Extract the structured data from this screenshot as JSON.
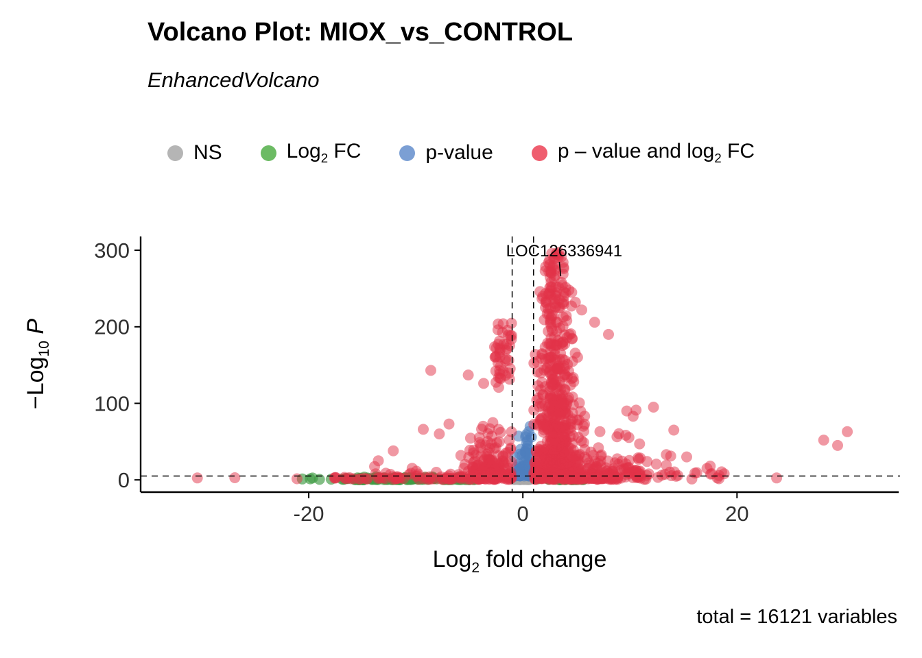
{
  "chart_data": {
    "type": "scatter",
    "title": "Volcano Plot: MIOX_vs_CONTROL",
    "subtitle": "EnhancedVolcano",
    "caption": "total = 16121 variables",
    "xlabel": {
      "pre": "Log",
      "sub": "2",
      "post": " fold change"
    },
    "ylabel": {
      "pre": "−Log",
      "sub": "10",
      "post": " P"
    },
    "x_axis": {
      "ticks": [
        -20,
        0,
        20
      ],
      "min": -35.7,
      "max": 35.1
    },
    "y_axis": {
      "ticks": [
        0,
        100,
        200,
        300
      ],
      "min": -16,
      "max": 318
    },
    "thresholds": {
      "vlines": [
        -1,
        1
      ],
      "hlines": [
        5
      ]
    },
    "annotation": {
      "label": "LOC126336941",
      "x": 3.6,
      "y": 258
    },
    "legend": [
      {
        "pre": "NS",
        "sub": "",
        "post": "",
        "color": "#b5b5b5"
      },
      {
        "pre": "Log",
        "sub": "2",
        "post": " FC",
        "color": "#6cbb64"
      },
      {
        "pre": "p-value",
        "sub": "",
        "post": "",
        "color": "#7b9fd4"
      },
      {
        "pre": "p – value and log",
        "sub": "2",
        "post": " FC",
        "color": "#ef5e6f"
      }
    ],
    "seed": 42,
    "series": [
      {
        "name": "NS",
        "color": "#a9a9a9",
        "opacity": 0.7,
        "r": 8,
        "clusters": [
          {
            "n": 70,
            "x": {
              "normal": [
                -0.1,
                0.45,
                -0.98,
                0.98
              ]
            },
            "y": {
              "exp": [
                0.3,
                1.5,
                4.8
              ]
            }
          }
        ],
        "points": []
      },
      {
        "name": "Log2 FC",
        "color": "#3f9b43",
        "opacity": 0.65,
        "r": 8,
        "clusters": [
          {
            "n": 90,
            "x": {
              "uniform": [
                -16,
                -8
              ]
            },
            "y": {
              "exp": [
                0.2,
                1.2,
                4.5
              ]
            }
          },
          {
            "n": 25,
            "x": {
              "uniform": [
                -8,
                -4
              ]
            },
            "y": {
              "exp": [
                0.2,
                1.0,
                4.0
              ]
            }
          },
          {
            "n": 30,
            "x": {
              "uniform": [
                1.2,
                6
              ]
            },
            "y": {
              "exp": [
                0.2,
                1.0,
                4.0
              ]
            }
          },
          {
            "n": 8,
            "x": {
              "uniform": [
                -20,
                -16
              ]
            },
            "y": {
              "uniform": [
                0.3,
                2.5
              ]
            }
          }
        ],
        "points": [
          [
            -20.6,
            1.2
          ],
          [
            -17.9,
            0.9
          ]
        ]
      },
      {
        "name": "p-value",
        "color": "#4f7fbe",
        "opacity": 0.6,
        "r": 8,
        "clusters": [
          {
            "n": 70,
            "x": {
              "normal": [
                0.45,
                0.3,
                -0.95,
                0.98
              ]
            },
            "y": {
              "exp": [
                5,
                14,
                70
              ]
            }
          },
          {
            "n": 25,
            "x": {
              "normal": [
                -0.4,
                0.3,
                -0.98,
                -0.02
              ]
            },
            "y": {
              "exp": [
                5,
                8,
                40
              ]
            }
          }
        ],
        "points": [
          [
            0.68,
            70
          ],
          [
            0.55,
            63
          ],
          [
            0.8,
            56
          ],
          [
            0.35,
            49
          ]
        ]
      },
      {
        "name": "p-value and log2 FC",
        "color": "#e23148",
        "opacity": 0.5,
        "r": 8,
        "clusters": [
          {
            "n": 420,
            "x": {
              "normal": [
                3.1,
                1.3,
                1.02,
                8
              ]
            },
            "y": {
              "exp": [
                2,
                30,
                190
              ]
            }
          },
          {
            "n": 160,
            "x": {
              "normal": [
                2.9,
                1.0,
                1.02,
                6.5
              ]
            },
            "y": {
              "uniform": [
                60,
                180
              ]
            }
          },
          {
            "n": 70,
            "x": {
              "normal": [
                3.1,
                0.8,
                1.5,
                5.5
              ]
            },
            "y": {
              "uniform": [
                180,
                255
              ]
            }
          },
          {
            "n": 26,
            "x": {
              "normal": [
                3.0,
                0.5,
                2.0,
                4.5
              ]
            },
            "y": {
              "uniform": [
                255,
                298
              ]
            }
          },
          {
            "n": 170,
            "x": {
              "normal": [
                -2.6,
                1.4,
                -9,
                -1.02
              ]
            },
            "y": {
              "exp": [
                1,
                22,
                130
              ]
            }
          },
          {
            "n": 45,
            "x": {
              "normal": [
                -1.8,
                0.7,
                -4.5,
                -1.02
              ]
            },
            "y": {
              "uniform": [
                120,
                205
              ]
            }
          },
          {
            "n": 80,
            "x": {
              "uniform": [
                6,
                11
              ]
            },
            "y": {
              "exp": [
                1,
                15,
                95
              ]
            }
          },
          {
            "n": 120,
            "x": {
              "uniform": [
                1.02,
                9
              ]
            },
            "y": {
              "exp": [
                0.5,
                3,
                12
              ]
            }
          },
          {
            "n": 60,
            "x": {
              "uniform": [
                -9,
                -1.02
              ]
            },
            "y": {
              "exp": [
                0.5,
                2.5,
                10
              ]
            }
          },
          {
            "n": 30,
            "x": {
              "uniform": [
                -14,
                -9
              ]
            },
            "y": {
              "exp": [
                0.5,
                4,
                40
              ]
            }
          },
          {
            "n": 25,
            "x": {
              "uniform": [
                9,
                14
              ]
            },
            "y": {
              "exp": [
                0.5,
                8,
                60
              ]
            }
          },
          {
            "n": 14,
            "x": {
              "uniform": [
                -18,
                -14
              ]
            },
            "y": {
              "uniform": [
                0.5,
                4
              ]
            }
          },
          {
            "n": 12,
            "x": {
              "uniform": [
                14,
                19
              ]
            },
            "y": {
              "uniform": [
                0.5,
                12
              ]
            }
          }
        ],
        "points": [
          [
            -30.4,
            2.5
          ],
          [
            -26.9,
            2.8
          ],
          [
            -21.1,
            1.5
          ],
          [
            -17.6,
            2.5
          ],
          [
            -8.6,
            143
          ],
          [
            -5.1,
            137
          ],
          [
            -9.3,
            66
          ],
          [
            -7.8,
            60
          ],
          [
            -6.9,
            73
          ],
          [
            -12.1,
            38
          ],
          [
            -13.5,
            25
          ],
          [
            9.7,
            90
          ],
          [
            10.3,
            83
          ],
          [
            12.2,
            95
          ],
          [
            14.1,
            65
          ],
          [
            10.9,
            47
          ],
          [
            13.4,
            33
          ],
          [
            11.6,
            24
          ],
          [
            15.3,
            30
          ],
          [
            17.2,
            15
          ],
          [
            18.8,
            8
          ],
          [
            17.5,
            18
          ],
          [
            23.7,
            2.5
          ],
          [
            28.1,
            52
          ],
          [
            29.4,
            45
          ],
          [
            30.3,
            63
          ],
          [
            2.7,
            296
          ],
          [
            3.3,
            290
          ],
          [
            2.4,
            284
          ],
          [
            3.8,
            278
          ],
          [
            4.9,
            232
          ],
          [
            5.5,
            222
          ],
          [
            6.7,
            206
          ],
          [
            8.0,
            190
          ],
          [
            4.3,
            248
          ],
          [
            3.6,
            258
          ]
        ]
      }
    ]
  }
}
